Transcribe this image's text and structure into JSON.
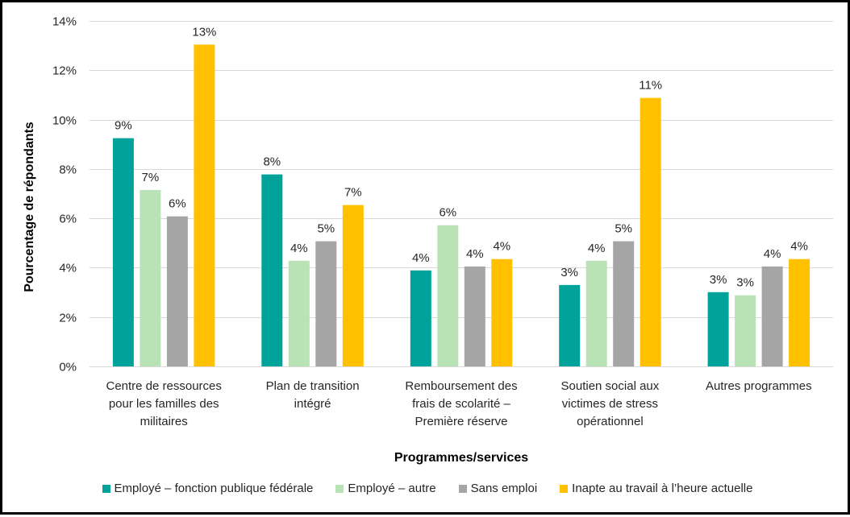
{
  "chart_data": {
    "type": "bar",
    "title": "",
    "xlabel": "Programmes/services",
    "ylabel": "Pourcentage de répondants",
    "ylim": [
      0,
      14
    ],
    "yticks": [
      0,
      2,
      4,
      6,
      8,
      10,
      12,
      14
    ],
    "ytick_labels": [
      "0%",
      "2%",
      "4%",
      "6%",
      "8%",
      "10%",
      "12%",
      "14%"
    ],
    "grid": true,
    "legend_position": "bottom",
    "categories": [
      [
        "Centre de ressources",
        "pour les familles des",
        "militaires"
      ],
      [
        "Plan de transition",
        "intégré"
      ],
      [
        "Remboursement des",
        "frais de scolarité –",
        "Première réserve"
      ],
      [
        "Soutien social aux",
        "victimes de stress",
        "opérationnel"
      ],
      [
        "Autres programmes"
      ]
    ],
    "series": [
      {
        "name": "Employé – fonction publique fédérale",
        "color": "#00A29A",
        "values": [
          9.25,
          7.78,
          3.89,
          3.3,
          3.01
        ],
        "labels": [
          "9%",
          "8%",
          "4%",
          "3%",
          "3%"
        ]
      },
      {
        "name": "Employé – autre",
        "color": "#B9E3B6",
        "values": [
          7.15,
          4.28,
          5.72,
          4.28,
          2.88
        ],
        "labels": [
          "7%",
          "4%",
          "6%",
          "4%",
          "3%"
        ]
      },
      {
        "name": "Sans emploi",
        "color": "#A5A5A5",
        "values": [
          6.08,
          5.07,
          4.05,
          5.07,
          4.05
        ],
        "labels": [
          "6%",
          "5%",
          "4%",
          "5%",
          "4%"
        ]
      },
      {
        "name": "Inapte au travail à l’heure actuelle",
        "color": "#FFC000",
        "values": [
          13.04,
          6.54,
          4.35,
          10.88,
          4.35
        ],
        "labels": [
          "13%",
          "7%",
          "4%",
          "11%",
          "4%"
        ]
      }
    ]
  }
}
